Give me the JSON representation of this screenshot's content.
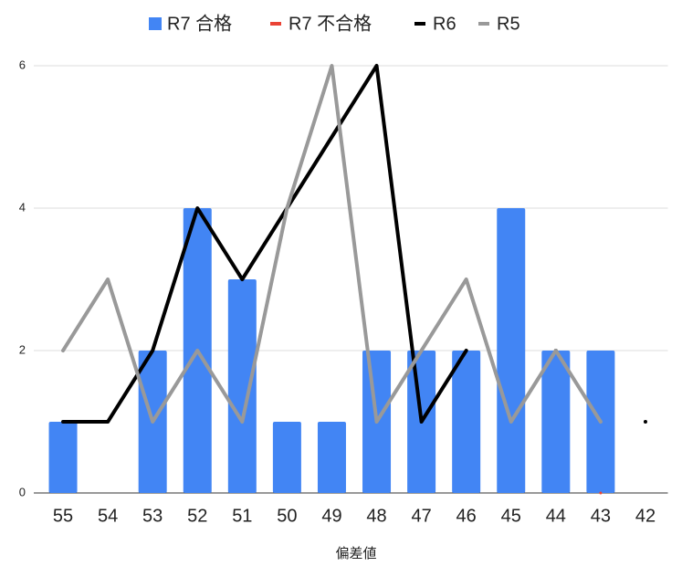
{
  "chart_data": {
    "type": "bar",
    "x_label": "偏差値",
    "categories": [
      "55",
      "54",
      "53",
      "52",
      "51",
      "50",
      "49",
      "48",
      "47",
      "46",
      "45",
      "44",
      "43",
      "42"
    ],
    "series": [
      {
        "name": "R7 合格",
        "type": "bar",
        "color": "#4285f4",
        "values": [
          1,
          null,
          2,
          4,
          3,
          1,
          1,
          2,
          2,
          2,
          4,
          2,
          2,
          null
        ]
      },
      {
        "name": "R7 不合格",
        "type": "line",
        "color": "#ea4335",
        "values": [
          null,
          null,
          null,
          null,
          null,
          null,
          null,
          null,
          null,
          null,
          null,
          null,
          0,
          null
        ]
      },
      {
        "name": "R6",
        "type": "line",
        "color": "#000000",
        "values": [
          1,
          1,
          2,
          4,
          3,
          4,
          5,
          6,
          1,
          2,
          null,
          2,
          null,
          1
        ]
      },
      {
        "name": "R5",
        "type": "line",
        "color": "#999999",
        "values": [
          2,
          3,
          1,
          2,
          1,
          4,
          6,
          1,
          2,
          3,
          1,
          2,
          1,
          null
        ]
      }
    ],
    "ylim": [
      0,
      6
    ],
    "yticks": [
      0,
      2,
      4,
      6
    ],
    "grid": true,
    "legend": "top"
  }
}
